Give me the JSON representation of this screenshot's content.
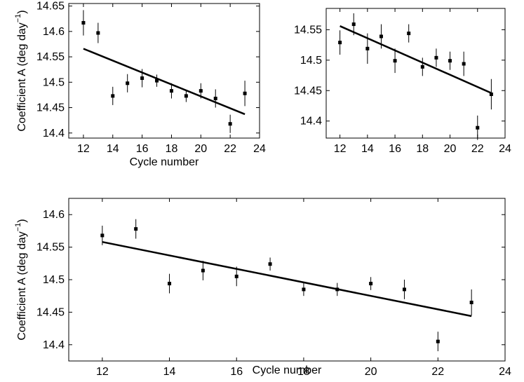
{
  "chart_data": [
    {
      "type": "scatter",
      "xlabel": "Cycle number",
      "ylabel_main": "Coefficient A (deg day",
      "ylabel_sup": "−1",
      "ylabel_close": ")",
      "xlim": [
        11,
        24
      ],
      "ylim": [
        14.39,
        14.655
      ],
      "xticks": [
        12,
        14,
        16,
        18,
        20,
        22,
        24
      ],
      "yticks": [
        14.4,
        14.45,
        14.5,
        14.55,
        14.6,
        14.65
      ],
      "ytick_labels": [
        "14.4",
        "14.45",
        "14.5",
        "14.55",
        "14.6",
        "14.65"
      ],
      "grid": false,
      "series": [
        {
          "x": [
            12,
            13,
            14,
            15,
            16,
            17,
            18,
            19,
            20,
            21,
            22,
            23
          ],
          "y": [
            14.617,
            14.597,
            14.473,
            14.498,
            14.508,
            14.503,
            14.483,
            14.473,
            14.483,
            14.468,
            14.418,
            14.478
          ],
          "err": [
            0.025,
            0.02,
            0.018,
            0.018,
            0.018,
            0.012,
            0.015,
            0.012,
            0.015,
            0.018,
            0.018,
            0.025
          ]
        }
      ],
      "fit_line": {
        "x": [
          12,
          23
        ],
        "y": [
          14.566,
          14.437
        ]
      }
    },
    {
      "type": "scatter",
      "xlabel": "",
      "xlim": [
        11,
        24
      ],
      "ylim": [
        14.372,
        14.585
      ],
      "xticks": [
        12,
        14,
        16,
        18,
        20,
        22,
        24
      ],
      "yticks": [
        14.4,
        14.45,
        14.5,
        14.55
      ],
      "ytick_labels": [
        "14.4",
        "14.45",
        "14.5",
        "14.55"
      ],
      "grid": false,
      "series": [
        {
          "x": [
            12,
            13,
            14,
            15,
            16,
            17,
            18,
            19,
            20,
            21,
            22,
            23
          ],
          "y": [
            14.529,
            14.559,
            14.519,
            14.539,
            14.499,
            14.544,
            14.489,
            14.504,
            14.499,
            14.494,
            14.389,
            14.444
          ],
          "err": [
            0.02,
            0.018,
            0.025,
            0.02,
            0.02,
            0.015,
            0.015,
            0.015,
            0.015,
            0.02,
            0.02,
            0.025
          ]
        }
      ],
      "fit_line": {
        "x": [
          12,
          23
        ],
        "y": [
          14.556,
          14.446
        ]
      }
    },
    {
      "type": "scatter",
      "xlabel": "Cycle number",
      "ylabel_main": "Coefficient A (deg day",
      "ylabel_sup": "−1",
      "ylabel_close": ")",
      "xlim": [
        11,
        24
      ],
      "ylim": [
        14.375,
        14.625
      ],
      "xticks": [
        12,
        14,
        16,
        18,
        20,
        22,
        24
      ],
      "yticks": [
        14.4,
        14.45,
        14.5,
        14.55,
        14.6
      ],
      "ytick_labels": [
        "14.4",
        "14.45",
        "14.5",
        "14.55",
        "14.6"
      ],
      "grid": false,
      "series": [
        {
          "x": [
            12,
            13,
            14,
            15,
            16,
            17,
            18,
            19,
            20,
            21,
            22,
            23
          ],
          "y": [
            14.568,
            14.578,
            14.494,
            14.514,
            14.505,
            14.524,
            14.485,
            14.485,
            14.494,
            14.485,
            14.405,
            14.465
          ],
          "err": [
            0.015,
            0.015,
            0.015,
            0.015,
            0.015,
            0.01,
            0.01,
            0.01,
            0.01,
            0.015,
            0.015,
            0.02
          ]
        }
      ],
      "fit_line": {
        "x": [
          12,
          23
        ],
        "y": [
          14.558,
          14.444
        ]
      }
    }
  ]
}
